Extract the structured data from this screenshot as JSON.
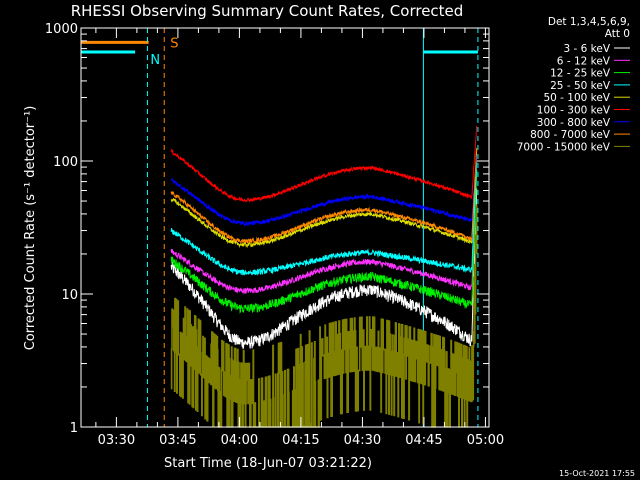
{
  "chart_data": {
    "type": "line",
    "title": "RHESSI Observing Summary Count Rates, Corrected",
    "xlabel": "Start Time (18-Jun-07 03:21:22)",
    "ylabel": "Corrected Count Rate (s⁻¹ detector⁻¹)",
    "yscale": "log",
    "ylim": [
      1,
      1000
    ],
    "xlim": [
      0,
      99.5
    ],
    "x_unit": "minutes after 03:21:22",
    "y_ticks": [
      {
        "value": 1,
        "label": "1"
      },
      {
        "value": 10,
        "label": "10"
      },
      {
        "value": 100,
        "label": "100"
      },
      {
        "value": 1000,
        "label": "1000"
      }
    ],
    "x_ticks": [
      {
        "value": 8.63,
        "label": "03:30"
      },
      {
        "value": 23.63,
        "label": "03:45"
      },
      {
        "value": 38.63,
        "label": "04:00"
      },
      {
        "value": 53.63,
        "label": "04:15"
      },
      {
        "value": 68.63,
        "label": "04:30"
      },
      {
        "value": 83.63,
        "label": "04:45"
      },
      {
        "value": 98.63,
        "label": "05:00"
      }
    ],
    "x_minor_step": 5,
    "data_start": 22.0,
    "data_end": 96.5,
    "legend_header": [
      "Det 1,3,4,5,6,9,",
      "Att 0"
    ],
    "series": [
      {
        "name": "3 - 6 keV",
        "color": "#ffffff",
        "base": 4.3,
        "peak": 10.8,
        "start": 16,
        "noise": 0.11,
        "spike": 60
      },
      {
        "name": "6 - 12 keV",
        "color": "#ff33ff",
        "base": 10.6,
        "peak": 17.5,
        "start": 21,
        "noise": 0.05,
        "spike": 90
      },
      {
        "name": "12 - 25 keV",
        "color": "#00ee00",
        "base": 7.8,
        "peak": 13.5,
        "start": 18,
        "noise": 0.08,
        "spike": 80
      },
      {
        "name": "25 - 50 keV",
        "color": "#00ffff",
        "base": 14.5,
        "peak": 20.5,
        "start": 30,
        "noise": 0.05,
        "spike": 100
      },
      {
        "name": "50 - 100 keV",
        "color": "#dddd00",
        "base": 23.5,
        "peak": 40,
        "start": 52,
        "noise": 0.035,
        "spike": 120
      },
      {
        "name": "100 - 300 keV",
        "color": "#ff0000",
        "base": 51,
        "peak": 89,
        "start": 118,
        "noise": 0.03,
        "spike": 185
      },
      {
        "name": "300 - 800 keV",
        "color": "#0000ff",
        "base": 34,
        "peak": 54,
        "start": 72,
        "noise": 0.035,
        "spike": 110
      },
      {
        "name": "800 - 7000 keV",
        "color": "#ff8800",
        "base": 25,
        "peak": 43,
        "start": 58,
        "noise": 0.035,
        "spike": 130
      },
      {
        "name": "7000 - 15000 keV",
        "color": "#808000",
        "base": 1.5,
        "peak": 3.0,
        "start": 4.5,
        "noise": 0.3,
        "spike": 50,
        "sparse": true
      }
    ],
    "flags": {
      "saa_label": "S",
      "night_label": "N",
      "saa_color": "#ff8800",
      "night_color": "#00ffff",
      "saa_bar_value": 780,
      "night_bar_value": 660,
      "saa_bar_x": [
        0,
        16.5
      ],
      "night_bar_x": [
        0,
        13.2
      ],
      "night_bar2_x": [
        83.5,
        96.8
      ],
      "saa_end_x": 20.3,
      "night_end_x": 16.2,
      "night_start2_x": 83.5,
      "night_end2_x": 96.8
    }
  },
  "timestamp": "15-Oct-2021 17:55"
}
